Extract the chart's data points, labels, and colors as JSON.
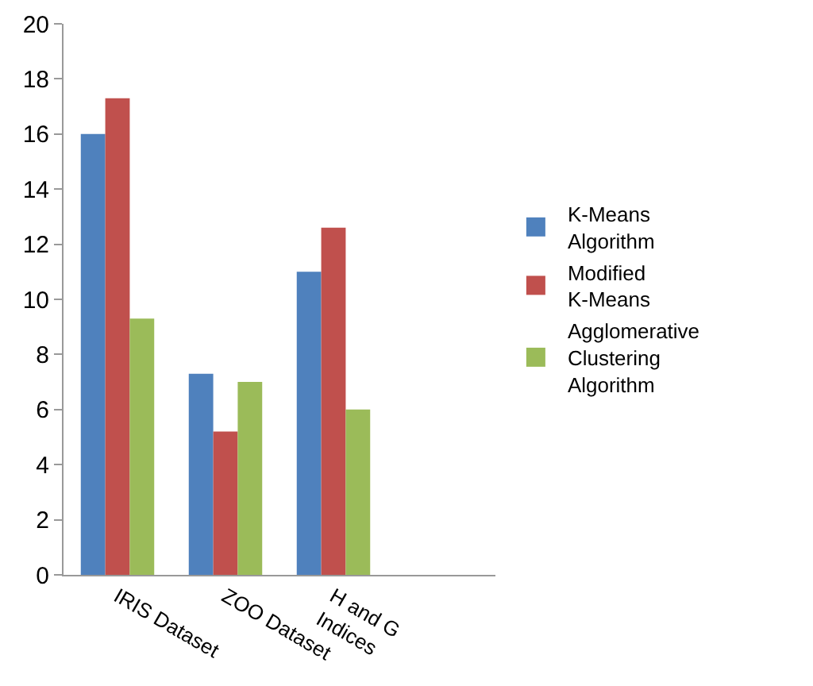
{
  "chart_data": {
    "type": "bar",
    "categories": [
      "IRIS Dataset",
      "ZOO Dataset",
      "H and G Indices",
      null
    ],
    "series": [
      {
        "name": "K-Means Algorithm",
        "color": "#4f81bd",
        "values": [
          16,
          7.3,
          11,
          null
        ]
      },
      {
        "name": "Modified K-Means",
        "color": "#c0504d",
        "values": [
          17.3,
          5.2,
          12.6,
          null
        ]
      },
      {
        "name": "Agglomerative Clustering Algorithm",
        "color": "#9bbb59",
        "values": [
          9.3,
          7,
          6,
          null
        ]
      }
    ],
    "ylim": [
      0,
      20
    ],
    "yticks": [
      0,
      2,
      4,
      6,
      8,
      10,
      12,
      14,
      16,
      18,
      20
    ],
    "grid": false,
    "legend": "right"
  }
}
